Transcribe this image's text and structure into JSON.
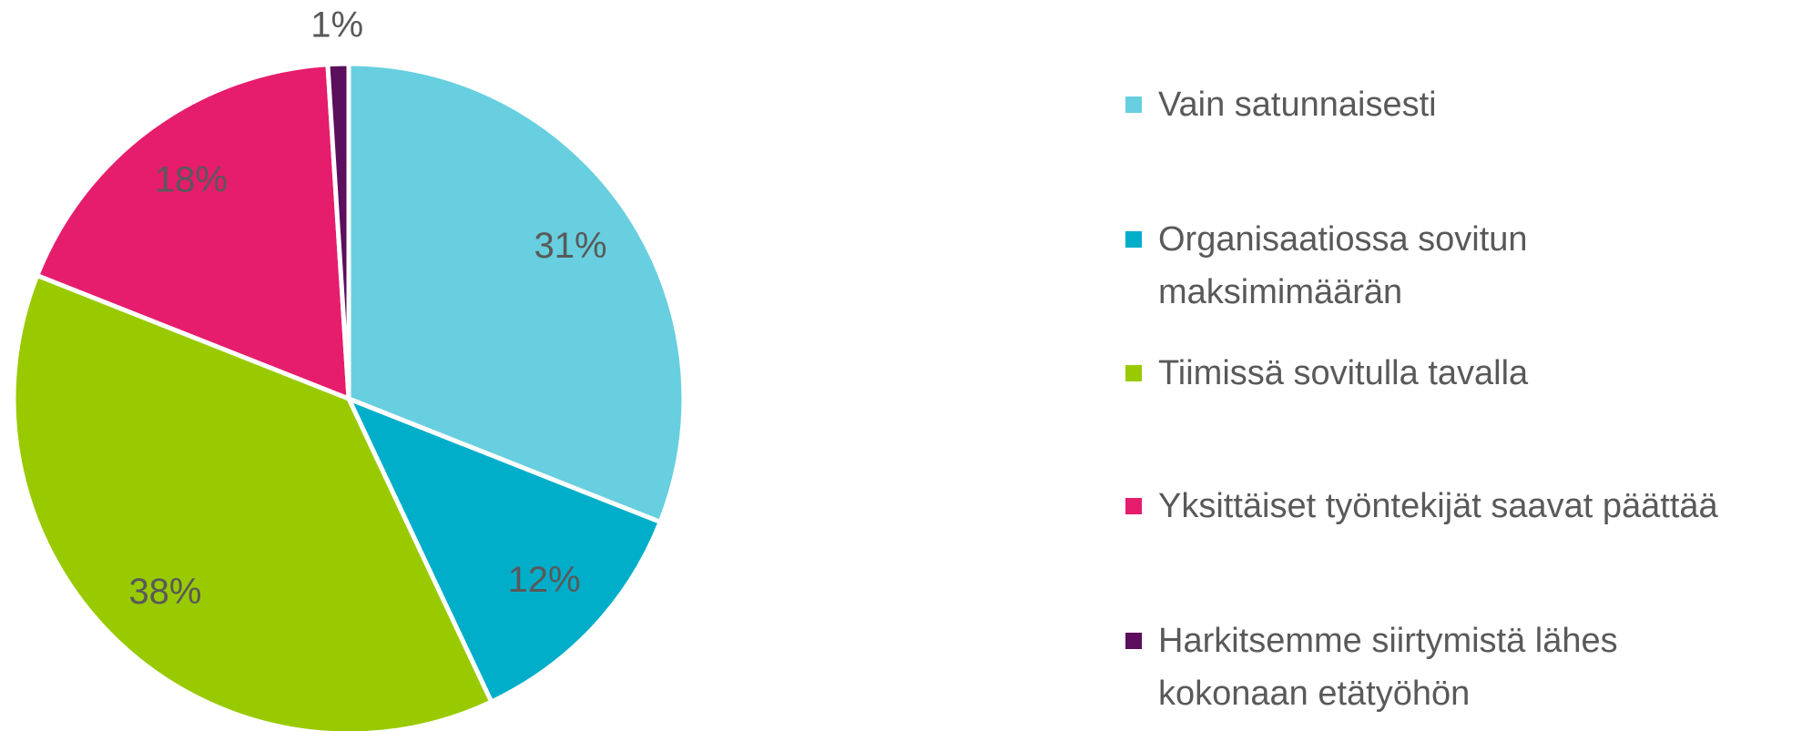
{
  "chart_data": {
    "type": "pie",
    "categories": [
      "Vain satunnaisesti",
      "Organisaatiossa sovitun\nmaksimimäärän",
      "Tiimissä sovitulla tavalla",
      "Yksittäiset työntekijät saavat päättää",
      "Harkitsemme siirtymistä lähes\nkokonaan etätyöhön"
    ],
    "values": [
      31,
      12,
      38,
      18,
      1
    ],
    "value_labels": [
      "31%",
      "12%",
      "38%",
      "18%",
      "1%"
    ],
    "colors": [
      "#67cfdf",
      "#00aeca",
      "#99ca00",
      "#e61c6c",
      "#5c0f5c"
    ],
    "legend": "right"
  }
}
